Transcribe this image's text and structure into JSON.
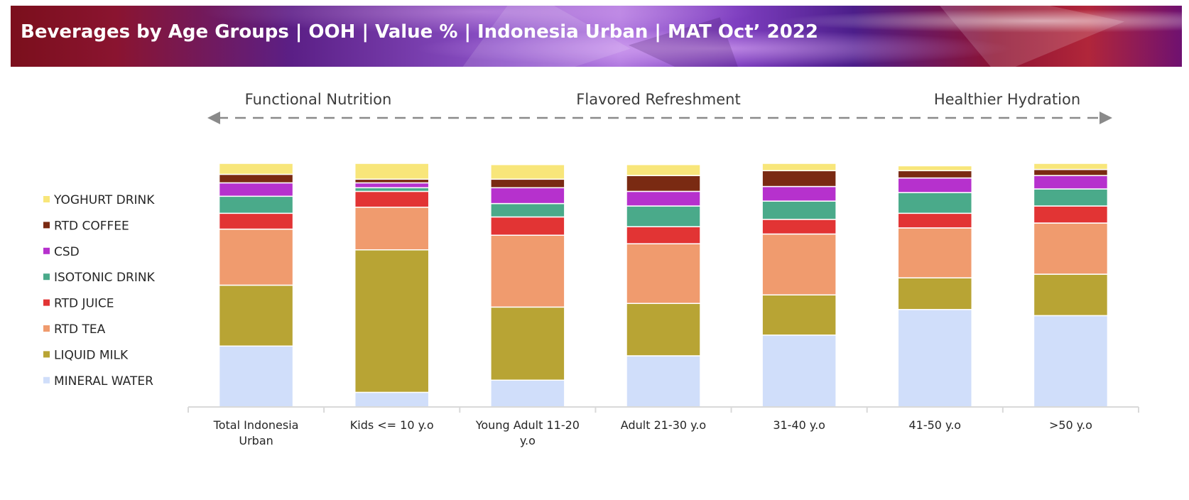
{
  "header": {
    "title": "Beverages by Age Groups | OOH | Value % | Indonesia Urban | MAT Oct’ 2022"
  },
  "annotation": {
    "left": "Functional Nutrition",
    "middle": "Flavored Refreshment",
    "right": "Healthier Hydration"
  },
  "chart_data": {
    "type": "bar",
    "stacked": true,
    "ylim": [
      0,
      100
    ],
    "grid": false,
    "legend_position": "left",
    "categories": [
      "Total Indonesia Urban",
      "Kids <= 10 y.o",
      "Young Adult 11-20 y.o",
      "Adult 21-30 y.o",
      "31-40 y.o",
      "41-50 y.o",
      ">50 y.o"
    ],
    "category_lines": [
      [
        "Total Indonesia",
        "Urban"
      ],
      [
        "Kids <= 10 y.o"
      ],
      [
        "Young Adult 11-20",
        "y.o"
      ],
      [
        "Adult 21-30 y.o"
      ],
      [
        "31-40 y.o"
      ],
      [
        "41-50 y.o"
      ],
      [
        ">50 y.o"
      ]
    ],
    "series": [
      {
        "name": "MINERAL WATER",
        "color": "#d0defa",
        "values": [
          25,
          6,
          11,
          21,
          29.5,
          40,
          37.5
        ]
      },
      {
        "name": "LIQUID MILK",
        "color": "#b8a434",
        "values": [
          25,
          58.5,
          30,
          21.5,
          16.5,
          13,
          17
        ]
      },
      {
        "name": "RTD TEA",
        "color": "#f09b6e",
        "values": [
          23,
          17.5,
          29.5,
          24.5,
          25,
          20.5,
          21
        ]
      },
      {
        "name": "RTD JUICE",
        "color": "#e23434",
        "values": [
          6.5,
          6.5,
          7.5,
          7,
          6,
          6,
          7
        ]
      },
      {
        "name": "ISOTONIC DRINK",
        "color": "#4aaa8a",
        "values": [
          7,
          1.5,
          5.5,
          8.5,
          7.5,
          8.5,
          7
        ]
      },
      {
        "name": "CSD",
        "color": "#b631cd",
        "values": [
          5.5,
          2,
          6.5,
          6,
          6,
          6,
          5.5
        ]
      },
      {
        "name": "RTD COFFEE",
        "color": "#7a2a12",
        "values": [
          3.5,
          1.5,
          3.5,
          6.5,
          6.5,
          3,
          2.5
        ]
      },
      {
        "name": "YOGHURT DRINK",
        "color": "#f8e67a",
        "values": [
          4.5,
          6.5,
          6,
          4.5,
          3,
          2,
          2.5
        ]
      }
    ]
  }
}
